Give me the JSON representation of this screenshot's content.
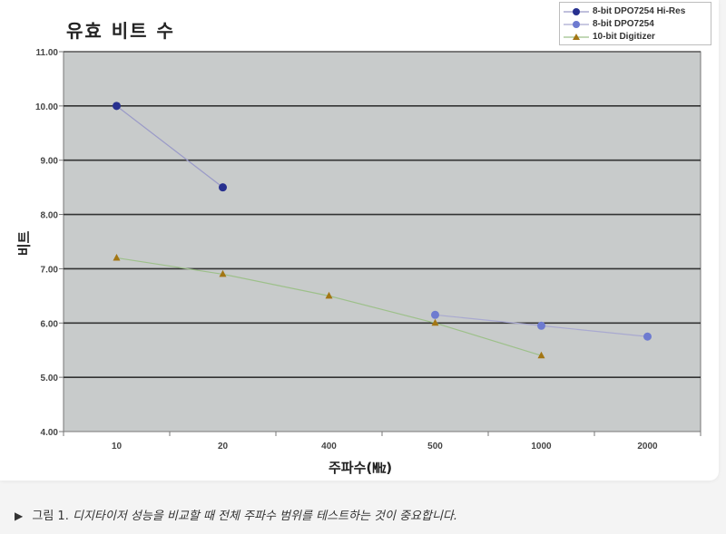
{
  "figure": {
    "title": "유효 비트 수",
    "ylabel": "비트",
    "xlabel": "주파수(㎒)",
    "caption": {
      "marker": "▶",
      "prefix": "그림 1.",
      "text": "디지타이저 성능을 비교할 때 전체 주파수 범위를 테스트하는 것이 중요합니다."
    }
  },
  "legend": {
    "items": [
      {
        "label": "8-bit DPO7254 Hi-Res",
        "color": "#27308f",
        "line_color": "#9a9ac8",
        "marker": "circle"
      },
      {
        "label": "8-bit DPO7254",
        "color": "#6e7bd0",
        "line_color": "#a9a9d0",
        "marker": "circle"
      },
      {
        "label": "10-bit Digitizer",
        "color": "#a37614",
        "line_color": "#9dc08a",
        "marker": "triangle"
      }
    ]
  },
  "colors": {
    "plot_bg": "#c8cbcb",
    "grid": "#333333",
    "axis": "#777777"
  },
  "chart_data": {
    "type": "line",
    "title": "유효 비트 수",
    "xlabel": "주파수(㎒)",
    "ylabel": "비트",
    "categories": [
      "10",
      "20",
      "400",
      "500",
      "1000",
      "2000"
    ],
    "yticks": [
      "4.00",
      "5.00",
      "6.00",
      "7.00",
      "8.00",
      "9.00",
      "10.00",
      "11.00"
    ],
    "ylim": [
      4,
      11
    ],
    "grid": true,
    "legend_position": "top-right",
    "series": [
      {
        "name": "8-bit DPO7254 Hi-Res",
        "values": [
          10.0,
          8.5,
          null,
          null,
          null,
          null
        ]
      },
      {
        "name": "8-bit DPO7254",
        "values": [
          null,
          null,
          null,
          6.15,
          5.95,
          5.75
        ]
      },
      {
        "name": "10-bit Digitizer",
        "values": [
          7.2,
          6.9,
          6.5,
          6.0,
          5.4,
          null
        ]
      }
    ]
  }
}
